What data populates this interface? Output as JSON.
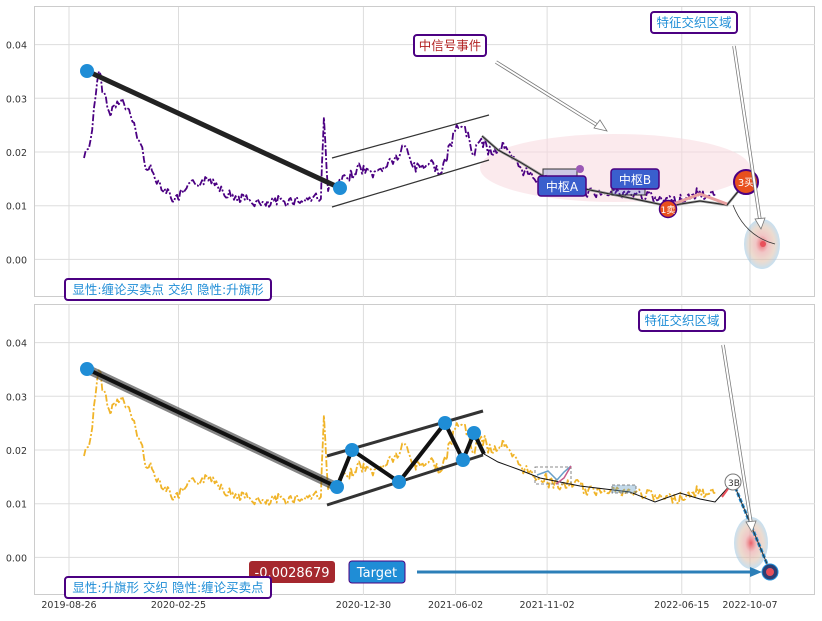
{
  "chart_data": [
    {
      "type": "line",
      "panel": "top",
      "title": "",
      "xlabel": "",
      "ylabel": "",
      "ylim": [
        -0.007,
        0.047
      ],
      "y_ticks": [
        "0.00",
        "0.01",
        "0.02",
        "0.03",
        "0.04"
      ],
      "y_tick_values": [
        0.0,
        0.01,
        0.02,
        0.03,
        0.04
      ],
      "grid": true,
      "series": [
        {
          "x": [
            "2019-09-20",
            "2019-10-01",
            "2019-10-15",
            "2019-11-01",
            "2019-11-20",
            "2019-12-10",
            "2020-01-01",
            "2020-01-25",
            "2020-02-20",
            "2020-03-20",
            "2020-04-20",
            "2020-05-20",
            "2020-06-20",
            "2020-07-20",
            "2020-08-20",
            "2020-09-20",
            "2020-10-20",
            "2020-10-25",
            "2020-11-01",
            "2020-11-20",
            "2020-12-20",
            "2021-01-20",
            "2021-02-10",
            "2021-02-25",
            "2021-03-10",
            "2021-03-25",
            "2021-04-20",
            "2021-05-10",
            "2021-06-01",
            "2021-06-15",
            "2021-07-01",
            "2021-07-15",
            "2021-08-01",
            "2021-08-20",
            "2021-09-10",
            "2021-10-01",
            "2021-10-20",
            "2021-11-10",
            "2021-12-01",
            "2021-12-20",
            "2022-01-10",
            "2022-02-10",
            "2022-03-10",
            "2022-04-10",
            "2022-05-10",
            "2022-06-10",
            "2022-07-10",
            "2022-08-10"
          ],
          "values": [
            0.019,
            0.022,
            0.035,
            0.027,
            0.03,
            0.026,
            0.018,
            0.014,
            0.011,
            0.014,
            0.015,
            0.012,
            0.011,
            0.01,
            0.011,
            0.011,
            0.012,
            0.026,
            0.013,
            0.014,
            0.017,
            0.016,
            0.018,
            0.019,
            0.021,
            0.017,
            0.018,
            0.016,
            0.024,
            0.025,
            0.02,
            0.022,
            0.02,
            0.021,
            0.018,
            0.016,
            0.015,
            0.014,
            0.013,
            0.014,
            0.012,
            0.013,
            0.012,
            0.012,
            0.011,
            0.011,
            0.012,
            0.012
          ]
        }
      ],
      "annotations": [
        {
          "label": "中信号事件"
        },
        {
          "label": "特征交织区域"
        },
        {
          "label": "中枢A"
        },
        {
          "label": "中枢B"
        },
        {
          "label": "1卖"
        },
        {
          "label": "3买"
        },
        {
          "label": "显性:缠论买卖点 交织 隐性:升旗形"
        }
      ]
    },
    {
      "type": "line",
      "panel": "bottom",
      "title": "",
      "xlabel": "",
      "ylabel": "",
      "ylim": [
        -0.007,
        0.047
      ],
      "y_ticks": [
        "0.00",
        "0.01",
        "0.02",
        "0.03",
        "0.04"
      ],
      "y_tick_values": [
        0.0,
        0.01,
        0.02,
        0.03,
        0.04
      ],
      "x_ticks": [
        "2019-08-26",
        "2020-02-25",
        "2020-12-30",
        "2021-06-02",
        "2021-11-02",
        "2022-06-15",
        "2022-10-07"
      ],
      "grid": true,
      "series": [
        {
          "x": [
            "2019-09-20",
            "2019-10-01",
            "2019-10-15",
            "2019-11-01",
            "2019-11-20",
            "2019-12-10",
            "2020-01-01",
            "2020-01-25",
            "2020-02-20",
            "2020-03-20",
            "2020-04-20",
            "2020-05-20",
            "2020-06-20",
            "2020-07-20",
            "2020-08-20",
            "2020-09-20",
            "2020-10-20",
            "2020-10-25",
            "2020-11-01",
            "2020-11-20",
            "2020-12-20",
            "2021-01-20",
            "2021-02-10",
            "2021-02-25",
            "2021-03-10",
            "2021-03-25",
            "2021-04-20",
            "2021-05-10",
            "2021-06-01",
            "2021-06-15",
            "2021-07-01",
            "2021-07-15",
            "2021-08-01",
            "2021-08-20",
            "2021-09-10",
            "2021-10-01",
            "2021-10-20",
            "2021-11-10",
            "2021-12-01",
            "2021-12-20",
            "2022-01-10",
            "2022-02-10",
            "2022-03-10",
            "2022-04-10",
            "2022-05-10",
            "2022-06-10",
            "2022-07-10",
            "2022-08-10"
          ],
          "values": [
            0.019,
            0.022,
            0.035,
            0.027,
            0.03,
            0.026,
            0.018,
            0.014,
            0.011,
            0.014,
            0.015,
            0.012,
            0.011,
            0.01,
            0.011,
            0.011,
            0.012,
            0.026,
            0.013,
            0.014,
            0.017,
            0.016,
            0.018,
            0.019,
            0.021,
            0.017,
            0.018,
            0.016,
            0.024,
            0.025,
            0.02,
            0.022,
            0.02,
            0.021,
            0.018,
            0.016,
            0.015,
            0.014,
            0.013,
            0.014,
            0.012,
            0.013,
            0.012,
            0.012,
            0.011,
            0.011,
            0.012,
            0.012
          ]
        }
      ],
      "annotations": [
        {
          "label": "特征交织区域"
        },
        {
          "label": "3B"
        },
        {
          "label": "-0.0028679"
        },
        {
          "label": "Target"
        },
        {
          "label": "显性:升旗形 交织 隐性:缠论买卖点"
        }
      ]
    }
  ],
  "colors": {
    "top_line": "#4b0082",
    "bottom_line": "#f0b429",
    "marker": "#1f8dd6",
    "label_border": "#4b0082",
    "label_text": "#1f8dd6",
    "signal_text": "#b22222",
    "zhongshu_fill": "#3a5fcd",
    "badge_red": "#b22222",
    "target_fill": "#1f8dd6"
  }
}
